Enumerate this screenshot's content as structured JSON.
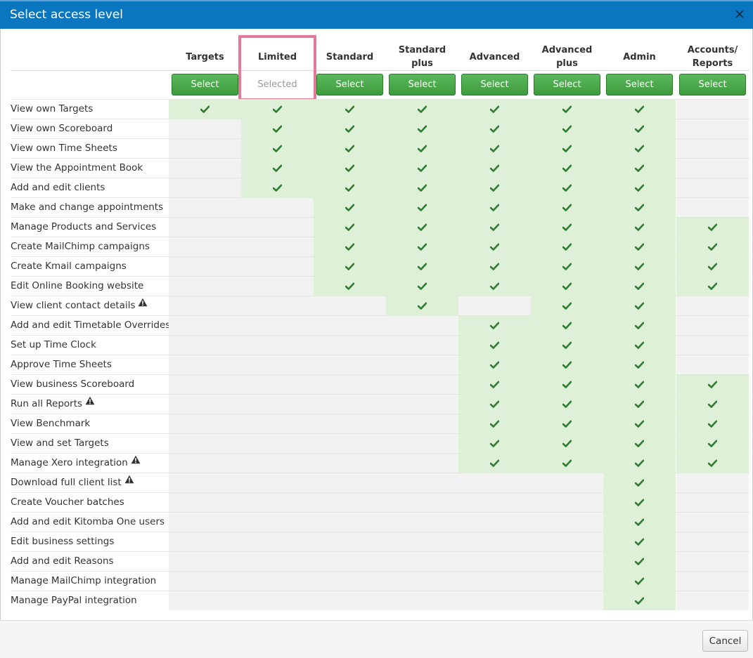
{
  "dialog": {
    "title": "Select access level",
    "close_label": "✕",
    "cancel_label": "Cancel"
  },
  "columns": [
    {
      "label": "Targets",
      "button": "Select",
      "selected": false
    },
    {
      "label": "Limited",
      "button": "Selected",
      "selected": true
    },
    {
      "label": "Standard",
      "button": "Select",
      "selected": false
    },
    {
      "label": "Standard plus",
      "button": "Select",
      "selected": false
    },
    {
      "label": "Advanced",
      "button": "Select",
      "selected": false
    },
    {
      "label": "Advanced plus",
      "button": "Select",
      "selected": false
    },
    {
      "label": "Admin",
      "button": "Select",
      "selected": false
    },
    {
      "label": "Accounts/ Reports",
      "button": "Select",
      "selected": false
    }
  ],
  "permissions": [
    {
      "label": "View own Targets",
      "warning": false,
      "access": [
        1,
        1,
        1,
        1,
        1,
        1,
        1,
        0
      ]
    },
    {
      "label": "View own Scoreboard",
      "warning": false,
      "access": [
        0,
        1,
        1,
        1,
        1,
        1,
        1,
        0
      ]
    },
    {
      "label": "View own Time Sheets",
      "warning": false,
      "access": [
        0,
        1,
        1,
        1,
        1,
        1,
        1,
        0
      ]
    },
    {
      "label": "View the Appointment Book",
      "warning": false,
      "access": [
        0,
        1,
        1,
        1,
        1,
        1,
        1,
        0
      ]
    },
    {
      "label": "Add and edit clients",
      "warning": false,
      "access": [
        0,
        1,
        1,
        1,
        1,
        1,
        1,
        0
      ]
    },
    {
      "label": "Make and change appointments",
      "warning": false,
      "access": [
        0,
        0,
        1,
        1,
        1,
        1,
        1,
        0
      ]
    },
    {
      "label": "Manage Products and Services",
      "warning": false,
      "access": [
        0,
        0,
        1,
        1,
        1,
        1,
        1,
        1
      ]
    },
    {
      "label": "Create MailChimp campaigns",
      "warning": false,
      "access": [
        0,
        0,
        1,
        1,
        1,
        1,
        1,
        1
      ]
    },
    {
      "label": "Create Kmail campaigns",
      "warning": false,
      "access": [
        0,
        0,
        1,
        1,
        1,
        1,
        1,
        1
      ]
    },
    {
      "label": "Edit Online Booking website",
      "warning": false,
      "access": [
        0,
        0,
        1,
        1,
        1,
        1,
        1,
        1
      ]
    },
    {
      "label": "View client contact details",
      "warning": true,
      "access": [
        0,
        0,
        0,
        1,
        0,
        1,
        1,
        0
      ]
    },
    {
      "label": "Add and edit Timetable Overrides",
      "warning": false,
      "access": [
        0,
        0,
        0,
        0,
        1,
        1,
        1,
        0
      ]
    },
    {
      "label": "Set up Time Clock",
      "warning": false,
      "access": [
        0,
        0,
        0,
        0,
        1,
        1,
        1,
        0
      ]
    },
    {
      "label": "Approve Time Sheets",
      "warning": false,
      "access": [
        0,
        0,
        0,
        0,
        1,
        1,
        1,
        0
      ]
    },
    {
      "label": "View business Scoreboard",
      "warning": false,
      "access": [
        0,
        0,
        0,
        0,
        1,
        1,
        1,
        1
      ]
    },
    {
      "label": "Run all Reports",
      "warning": true,
      "access": [
        0,
        0,
        0,
        0,
        1,
        1,
        1,
        1
      ]
    },
    {
      "label": "View Benchmark",
      "warning": false,
      "access": [
        0,
        0,
        0,
        0,
        1,
        1,
        1,
        1
      ]
    },
    {
      "label": "View and set Targets",
      "warning": false,
      "access": [
        0,
        0,
        0,
        0,
        1,
        1,
        1,
        1
      ]
    },
    {
      "label": "Manage Xero integration",
      "warning": true,
      "access": [
        0,
        0,
        0,
        0,
        1,
        1,
        1,
        1
      ]
    },
    {
      "label": "Download full client list",
      "warning": true,
      "access": [
        0,
        0,
        0,
        0,
        0,
        0,
        1,
        0
      ]
    },
    {
      "label": "Create Voucher batches",
      "warning": false,
      "access": [
        0,
        0,
        0,
        0,
        0,
        0,
        1,
        0
      ]
    },
    {
      "label": "Add and edit Kitomba One users",
      "warning": false,
      "access": [
        0,
        0,
        0,
        0,
        0,
        0,
        1,
        0
      ]
    },
    {
      "label": "Edit business settings",
      "warning": false,
      "access": [
        0,
        0,
        0,
        0,
        0,
        0,
        1,
        0
      ]
    },
    {
      "label": "Add and edit Reasons",
      "warning": false,
      "access": [
        0,
        0,
        0,
        0,
        0,
        0,
        1,
        0
      ]
    },
    {
      "label": "Manage MailChimp integration",
      "warning": false,
      "access": [
        0,
        0,
        0,
        0,
        0,
        0,
        1,
        0
      ]
    },
    {
      "label": "Manage PayPal integration",
      "warning": false,
      "access": [
        0,
        0,
        0,
        0,
        0,
        0,
        1,
        0
      ]
    }
  ],
  "icons": {
    "granted": "check-icon",
    "warning": "warning-triangle-icon",
    "close": "close-icon"
  },
  "colors": {
    "title_bar": "#0b76c0",
    "granted_cell": "#dff0d8",
    "denied_cell": "#f2f2f2",
    "check": "#2e7d32",
    "select_button": "#4cae4c",
    "selected_highlight": "#e17a96"
  }
}
